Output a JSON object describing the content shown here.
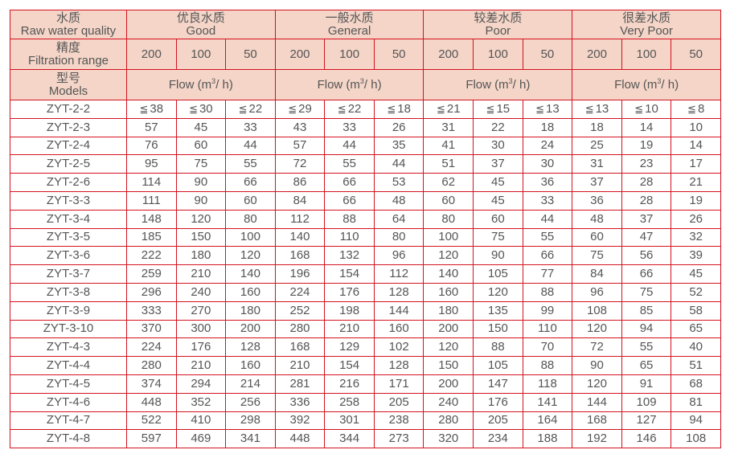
{
  "header": {
    "quality_cn": "水质",
    "quality_en": "Raw water quality",
    "range_cn": "精度",
    "range_en": "Filtration range",
    "model_cn": "型号",
    "model_en": "Models",
    "flow_label": "Flow (m",
    "flow_sup": "3",
    "flow_unit": "/ h)",
    "groups": [
      {
        "cn": "优良水质",
        "en": "Good"
      },
      {
        "cn": "一般水质",
        "en": "General"
      },
      {
        "cn": "较差水质",
        "en": "Poor"
      },
      {
        "cn": "很差水质",
        "en": "Very Poor"
      }
    ],
    "ranges": [
      "200",
      "100",
      "50"
    ]
  },
  "le_symbol": "≦",
  "colors": {
    "border": "#d4121e",
    "header_bg": "#f4d5c8",
    "text": "#555555"
  },
  "rows": [
    {
      "model": "ZYT-2-2",
      "values": [
        "38",
        "30",
        "22",
        "29",
        "22",
        "18",
        "21",
        "15",
        "13",
        "13",
        "10",
        "8"
      ],
      "max": true
    },
    {
      "model": "ZYT-2-3",
      "values": [
        "57",
        "45",
        "33",
        "43",
        "33",
        "26",
        "31",
        "22",
        "18",
        "18",
        "14",
        "10"
      ]
    },
    {
      "model": "ZYT-2-4",
      "values": [
        "76",
        "60",
        "44",
        "57",
        "44",
        "35",
        "41",
        "30",
        "24",
        "25",
        "19",
        "14"
      ]
    },
    {
      "model": "ZYT-2-5",
      "values": [
        "95",
        "75",
        "55",
        "72",
        "55",
        "44",
        "51",
        "37",
        "30",
        "31",
        "23",
        "17"
      ]
    },
    {
      "model": "ZYT-2-6",
      "values": [
        "114",
        "90",
        "66",
        "86",
        "66",
        "53",
        "62",
        "45",
        "36",
        "37",
        "28",
        "21"
      ]
    },
    {
      "model": "ZYT-3-3",
      "values": [
        "111",
        "90",
        "60",
        "84",
        "66",
        "48",
        "60",
        "45",
        "33",
        "36",
        "28",
        "19"
      ]
    },
    {
      "model": "ZYT-3-4",
      "values": [
        "148",
        "120",
        "80",
        "112",
        "88",
        "64",
        "80",
        "60",
        "44",
        "48",
        "37",
        "26"
      ]
    },
    {
      "model": "ZYT-3-5",
      "values": [
        "185",
        "150",
        "100",
        "140",
        "110",
        "80",
        "100",
        "75",
        "55",
        "60",
        "47",
        "32"
      ]
    },
    {
      "model": "ZYT-3-6",
      "values": [
        "222",
        "180",
        "120",
        "168",
        "132",
        "96",
        "120",
        "90",
        "66",
        "75",
        "56",
        "39"
      ]
    },
    {
      "model": "ZYT-3-7",
      "values": [
        "259",
        "210",
        "140",
        "196",
        "154",
        "112",
        "140",
        "105",
        "77",
        "84",
        "66",
        "45"
      ]
    },
    {
      "model": "ZYT-3-8",
      "values": [
        "296",
        "240",
        "160",
        "224",
        "176",
        "128",
        "160",
        "120",
        "88",
        "96",
        "75",
        "52"
      ]
    },
    {
      "model": "ZYT-3-9",
      "values": [
        "333",
        "270",
        "180",
        "252",
        "198",
        "144",
        "180",
        "135",
        "99",
        "108",
        "85",
        "58"
      ]
    },
    {
      "model": "ZYT-3-10",
      "values": [
        "370",
        "300",
        "200",
        "280",
        "210",
        "160",
        "200",
        "150",
        "110",
        "120",
        "94",
        "65"
      ]
    },
    {
      "model": "ZYT-4-3",
      "values": [
        "224",
        "176",
        "128",
        "168",
        "129",
        "102",
        "120",
        "88",
        "70",
        "72",
        "55",
        "40"
      ]
    },
    {
      "model": "ZYT-4-4",
      "values": [
        "280",
        "210",
        "160",
        "210",
        "154",
        "128",
        "150",
        "105",
        "88",
        "90",
        "65",
        "51"
      ]
    },
    {
      "model": "ZYT-4-5",
      "values": [
        "374",
        "294",
        "214",
        "281",
        "216",
        "171",
        "200",
        "147",
        "118",
        "120",
        "91",
        "68"
      ]
    },
    {
      "model": "ZYT-4-6",
      "values": [
        "448",
        "352",
        "256",
        "336",
        "258",
        "205",
        "240",
        "176",
        "141",
        "144",
        "109",
        "81"
      ]
    },
    {
      "model": "ZYT-4-7",
      "values": [
        "522",
        "410",
        "298",
        "392",
        "301",
        "238",
        "280",
        "205",
        "164",
        "168",
        "127",
        "94"
      ]
    },
    {
      "model": "ZYT-4-8",
      "values": [
        "597",
        "469",
        "341",
        "448",
        "344",
        "273",
        "320",
        "234",
        "188",
        "192",
        "146",
        "108"
      ]
    }
  ]
}
